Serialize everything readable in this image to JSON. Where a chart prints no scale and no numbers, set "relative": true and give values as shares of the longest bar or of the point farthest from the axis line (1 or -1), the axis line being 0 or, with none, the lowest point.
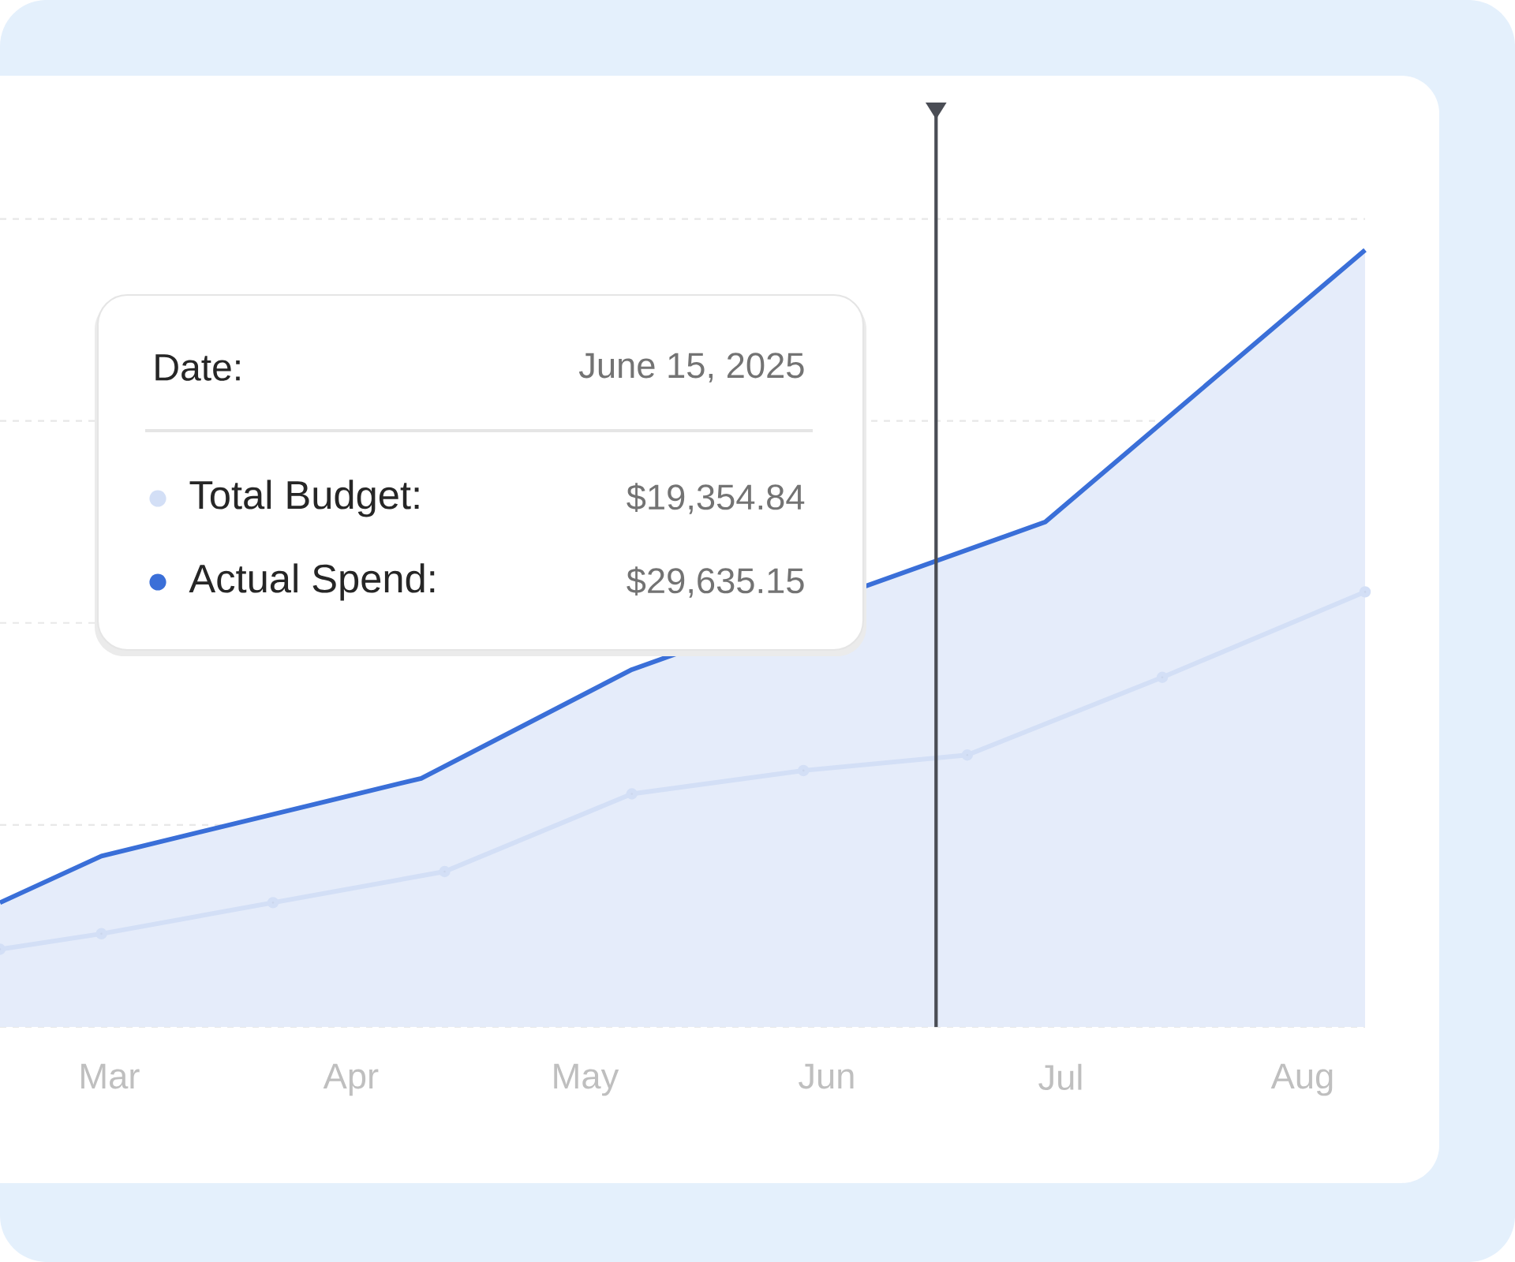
{
  "chart_data": {
    "type": "line",
    "relative": true,
    "xlim": [
      "2025-02-15",
      "2025-08-09"
    ],
    "xticks": [
      {
        "value": "2025-03-01",
        "label": "Mar"
      },
      {
        "value": "2025-04-01",
        "label": "Apr"
      },
      {
        "value": "2025-05-01",
        "label": "May"
      },
      {
        "value": "2025-06-01",
        "label": "Jun"
      },
      {
        "value": "2025-07-01",
        "label": "Jul"
      },
      {
        "value": "2025-08-01",
        "label": "Aug"
      }
    ],
    "series": [
      {
        "name": "Total Budget:",
        "color": "#d3dff6",
        "marker": "circle",
        "x": [
          "2025-02-15",
          "2025-02-28",
          "2025-03-22",
          "2025-04-13",
          "2025-05-07",
          "2025-05-29",
          "2025-06-19",
          "2025-07-14",
          "2025-08-09"
        ],
        "values": [
          0.1,
          0.12,
          0.16,
          0.2,
          0.3,
          0.33,
          0.35,
          0.45,
          0.56
        ]
      },
      {
        "name": "Actual Spend:",
        "type": "area",
        "color": "#3a6fd8",
        "x": [
          "2025-02-15",
          "2025-02-28",
          "2025-04-10",
          "2025-05-07",
          "2025-06-29",
          "2025-08-09"
        ],
        "values": [
          0.16,
          0.22,
          0.32,
          0.46,
          0.65,
          1.0
        ]
      }
    ],
    "ref_lines": [
      {
        "axis": "x",
        "value": "2025-06-15",
        "color": "#4a4d55"
      }
    ],
    "annotations": [
      "Date:",
      "June 15, 2025",
      "$19,354.84",
      "$29,635.15"
    ],
    "grid": "y",
    "legend": "top left"
  }
}
